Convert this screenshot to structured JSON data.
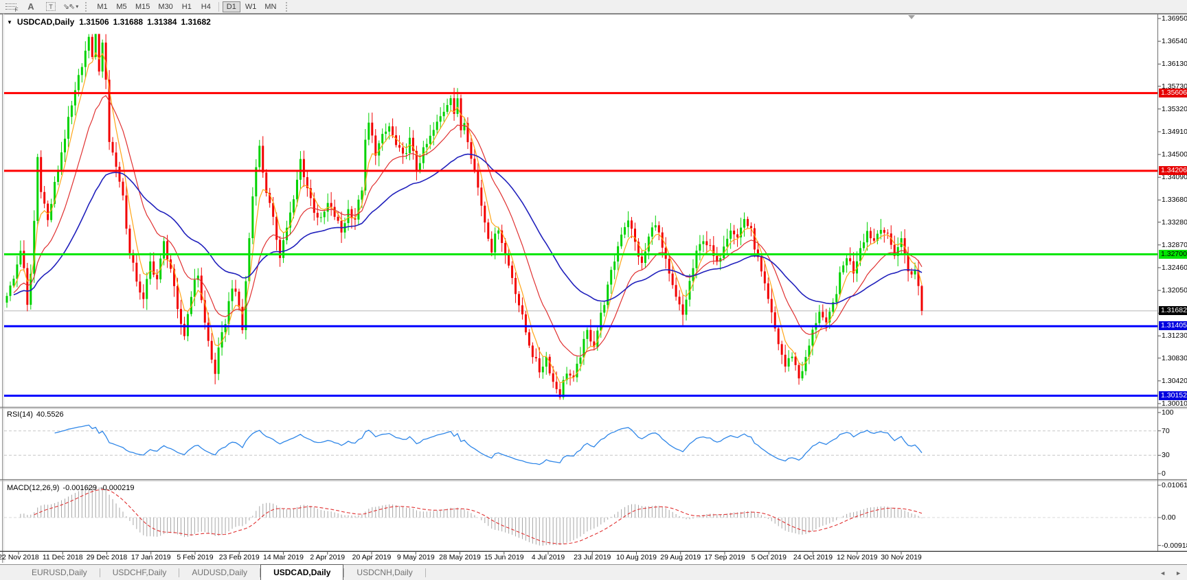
{
  "toolbar": {
    "tools": [
      {
        "name": "fibonacci-lines-tool"
      },
      {
        "name": "text-label-tool",
        "glyph": "A"
      },
      {
        "name": "text-tool",
        "glyph": "T"
      },
      {
        "name": "arrows-objects-tool"
      }
    ],
    "timeframes": [
      "M1",
      "M5",
      "M15",
      "M30",
      "H1",
      "H4",
      "D1",
      "W1",
      "MN"
    ],
    "active_timeframe": "D1"
  },
  "chart": {
    "title": "USDCAD,Daily",
    "quotes": {
      "open": "1.31506",
      "high": "1.31688",
      "low": "1.31384",
      "close": "1.31682"
    }
  },
  "price_axis": {
    "ticks": [
      "1.36950",
      "1.36540",
      "1.36130",
      "1.35730",
      "1.35320",
      "1.34910",
      "1.34500",
      "1.34090",
      "1.33680",
      "1.33280",
      "1.32870",
      "1.32460",
      "1.32050",
      "1.31640",
      "1.31230",
      "1.30830",
      "1.30420",
      "1.30010"
    ]
  },
  "levels": [
    {
      "value": "1.35606",
      "price": 1.35606,
      "color": "#ff0000",
      "badge_bg": "#e60000",
      "badge_fg": "#ffffff"
    },
    {
      "value": "1.34206",
      "price": 1.34206,
      "color": "#ff0000",
      "badge_bg": "#e60000",
      "badge_fg": "#ffffff"
    },
    {
      "value": "1.32700",
      "price": 1.327,
      "color": "#00e600",
      "badge_bg": "#00e600",
      "badge_fg": "#000000"
    },
    {
      "value": "1.31405",
      "price": 1.31405,
      "color": "#0000ff",
      "badge_bg": "#0000e0",
      "badge_fg": "#ffffff"
    },
    {
      "value": "1.30152",
      "price": 1.30152,
      "color": "#0000ff",
      "badge_bg": "#0000e0",
      "badge_fg": "#ffffff"
    }
  ],
  "current_price": {
    "value": "1.31682",
    "price": 1.31682,
    "line_color": "#b4b4b4",
    "badge_bg": "#000000",
    "badge_fg": "#ffffff"
  },
  "rsi": {
    "label": "RSI(14)",
    "value": "40.5526",
    "axis_labels": [
      "100",
      "70",
      "30",
      "0"
    ],
    "level_high": 70,
    "level_low": 30,
    "line_color": "#2e86e8"
  },
  "macd": {
    "label": "MACD(12,26,9)",
    "main_value": "-0.001629",
    "signal_value": "-0.000219",
    "axis_labels": [
      "0.010615",
      "0.00",
      "-0.009181"
    ],
    "histogram_color": "#a6a6a6",
    "signal_color": "#e03030"
  },
  "date_axis": [
    "22 Nov 2018",
    "11 Dec 2018",
    "29 Dec 2018",
    "17 Jan 2019",
    "5 Feb 2019",
    "23 Feb 2019",
    "14 Mar 2019",
    "2 Apr 2019",
    "20 Apr 2019",
    "9 May 2019",
    "28 May 2019",
    "15 Jun 2019",
    "4 Jul 2019",
    "23 Jul 2019",
    "10 Aug 2019",
    "29 Aug 2019",
    "17 Sep 2019",
    "5 Oct 2019",
    "24 Oct 2019",
    "12 Nov 2019",
    "30 Nov 2019"
  ],
  "tabs": {
    "items": [
      "EURUSD,Daily",
      "USDCHF,Daily",
      "AUDUSD,Daily",
      "USDCAD,Daily",
      "USDCNH,Daily"
    ],
    "active": "USDCAD,Daily"
  },
  "chart_data": {
    "type": "candlestick",
    "symbol": "USDCAD",
    "timeframe": "Daily",
    "title": "USDCAD,Daily",
    "ylim": [
      1.2996,
      1.3701
    ],
    "x_first_label": "22 Nov 2018",
    "x_last_label": "30 Nov 2019",
    "candle_count": 269,
    "up_color": "#00d200",
    "down_color": "#f20000",
    "price_keyframes": [
      [
        0,
        1.3195
      ],
      [
        2,
        1.3225
      ],
      [
        4,
        1.328
      ],
      [
        5,
        1.324
      ],
      [
        6,
        1.3175
      ],
      [
        7,
        1.3235
      ],
      [
        8,
        1.333
      ],
      [
        9,
        1.3445
      ],
      [
        10,
        1.339
      ],
      [
        12,
        1.333
      ],
      [
        14,
        1.3395
      ],
      [
        16,
        1.3455
      ],
      [
        18,
        1.351
      ],
      [
        20,
        1.356
      ],
      [
        22,
        1.3615
      ],
      [
        24,
        1.3655
      ],
      [
        25,
        1.363
      ],
      [
        26,
        1.3663
      ],
      [
        27,
        1.3605
      ],
      [
        28,
        1.3645
      ],
      [
        29,
        1.359
      ],
      [
        30,
        1.3475
      ],
      [
        32,
        1.343
      ],
      [
        34,
        1.3375
      ],
      [
        36,
        1.327
      ],
      [
        38,
        1.3225
      ],
      [
        40,
        1.3185
      ],
      [
        42,
        1.3255
      ],
      [
        44,
        1.3225
      ],
      [
        46,
        1.329
      ],
      [
        48,
        1.3245
      ],
      [
        50,
        1.3165
      ],
      [
        52,
        1.3125
      ],
      [
        54,
        1.32
      ],
      [
        56,
        1.3235
      ],
      [
        58,
        1.3145
      ],
      [
        60,
        1.308
      ],
      [
        61,
        1.3058
      ],
      [
        62,
        1.3095
      ],
      [
        64,
        1.315
      ],
      [
        66,
        1.3215
      ],
      [
        68,
        1.3175
      ],
      [
        69,
        1.3135
      ],
      [
        70,
        1.322
      ],
      [
        71,
        1.33
      ],
      [
        72,
        1.3375
      ],
      [
        73,
        1.3435
      ],
      [
        74,
        1.3462
      ],
      [
        75,
        1.342
      ],
      [
        76,
        1.3385
      ],
      [
        78,
        1.333
      ],
      [
        80,
        1.327
      ],
      [
        82,
        1.332
      ],
      [
        84,
        1.3365
      ],
      [
        86,
        1.344
      ],
      [
        88,
        1.339
      ],
      [
        90,
        1.335
      ],
      [
        92,
        1.333
      ],
      [
        94,
        1.336
      ],
      [
        96,
        1.334
      ],
      [
        98,
        1.331
      ],
      [
        100,
        1.335
      ],
      [
        102,
        1.3335
      ],
      [
        104,
        1.339
      ],
      [
        105,
        1.347
      ],
      [
        106,
        1.3505
      ],
      [
        107,
        1.348
      ],
      [
        108,
        1.3455
      ],
      [
        110,
        1.348
      ],
      [
        112,
        1.35
      ],
      [
        114,
        1.3465
      ],
      [
        116,
        1.3445
      ],
      [
        118,
        1.3475
      ],
      [
        120,
        1.3425
      ],
      [
        122,
        1.3455
      ],
      [
        124,
        1.348
      ],
      [
        126,
        1.3505
      ],
      [
        128,
        1.353
      ],
      [
        130,
        1.3558
      ],
      [
        131,
        1.3525
      ],
      [
        132,
        1.3545
      ],
      [
        133,
        1.3495
      ],
      [
        134,
        1.351
      ],
      [
        136,
        1.345
      ],
      [
        138,
        1.339
      ],
      [
        140,
        1.333
      ],
      [
        142,
        1.328
      ],
      [
        144,
        1.332
      ],
      [
        146,
        1.327
      ],
      [
        148,
        1.323
      ],
      [
        150,
        1.318
      ],
      [
        152,
        1.313
      ],
      [
        154,
        1.309
      ],
      [
        156,
        1.306
      ],
      [
        158,
        1.3085
      ],
      [
        160,
        1.304
      ],
      [
        162,
        1.3018
      ],
      [
        164,
        1.306
      ],
      [
        166,
        1.3042
      ],
      [
        168,
        1.309
      ],
      [
        170,
        1.313
      ],
      [
        172,
        1.3108
      ],
      [
        174,
        1.316
      ],
      [
        176,
        1.321
      ],
      [
        178,
        1.326
      ],
      [
        180,
        1.331
      ],
      [
        182,
        1.3335
      ],
      [
        184,
        1.329
      ],
      [
        186,
        1.325
      ],
      [
        188,
        1.33
      ],
      [
        190,
        1.333
      ],
      [
        192,
        1.328
      ],
      [
        194,
        1.323
      ],
      [
        196,
        1.319
      ],
      [
        198,
        1.316
      ],
      [
        200,
        1.322
      ],
      [
        202,
        1.327
      ],
      [
        204,
        1.33
      ],
      [
        206,
        1.328
      ],
      [
        208,
        1.325
      ],
      [
        210,
        1.329
      ],
      [
        212,
        1.332
      ],
      [
        214,
        1.33
      ],
      [
        216,
        1.3335
      ],
      [
        218,
        1.331
      ],
      [
        220,
        1.326
      ],
      [
        222,
        1.321
      ],
      [
        224,
        1.316
      ],
      [
        226,
        1.311
      ],
      [
        228,
        1.3068
      ],
      [
        230,
        1.309
      ],
      [
        232,
        1.3048
      ],
      [
        234,
        1.308
      ],
      [
        236,
        1.313
      ],
      [
        238,
        1.317
      ],
      [
        240,
        1.314
      ],
      [
        242,
        1.318
      ],
      [
        244,
        1.323
      ],
      [
        246,
        1.3268
      ],
      [
        248,
        1.324
      ],
      [
        250,
        1.3285
      ],
      [
        252,
        1.3312
      ],
      [
        254,
        1.3295
      ],
      [
        256,
        1.3322
      ],
      [
        258,
        1.33
      ],
      [
        260,
        1.3272
      ],
      [
        262,
        1.3296
      ],
      [
        263,
        1.327
      ],
      [
        264,
        1.3245
      ],
      [
        265,
        1.323
      ],
      [
        266,
        1.324
      ],
      [
        267,
        1.3213
      ],
      [
        268,
        1.31682
      ]
    ],
    "overlays": [
      {
        "name": "ma-fast",
        "color": "#ffa516",
        "period": 5
      },
      {
        "name": "ma-medium",
        "color": "#e03030",
        "period": 16
      },
      {
        "name": "ma-slow",
        "color": "#2020bc",
        "period": 45
      }
    ],
    "hlines": [
      1.35606,
      1.34206,
      1.327,
      1.31405,
      1.30152
    ],
    "rsi_ylim": [
      0,
      100
    ],
    "macd_ylim": [
      -0.009181,
      0.010615
    ]
  }
}
